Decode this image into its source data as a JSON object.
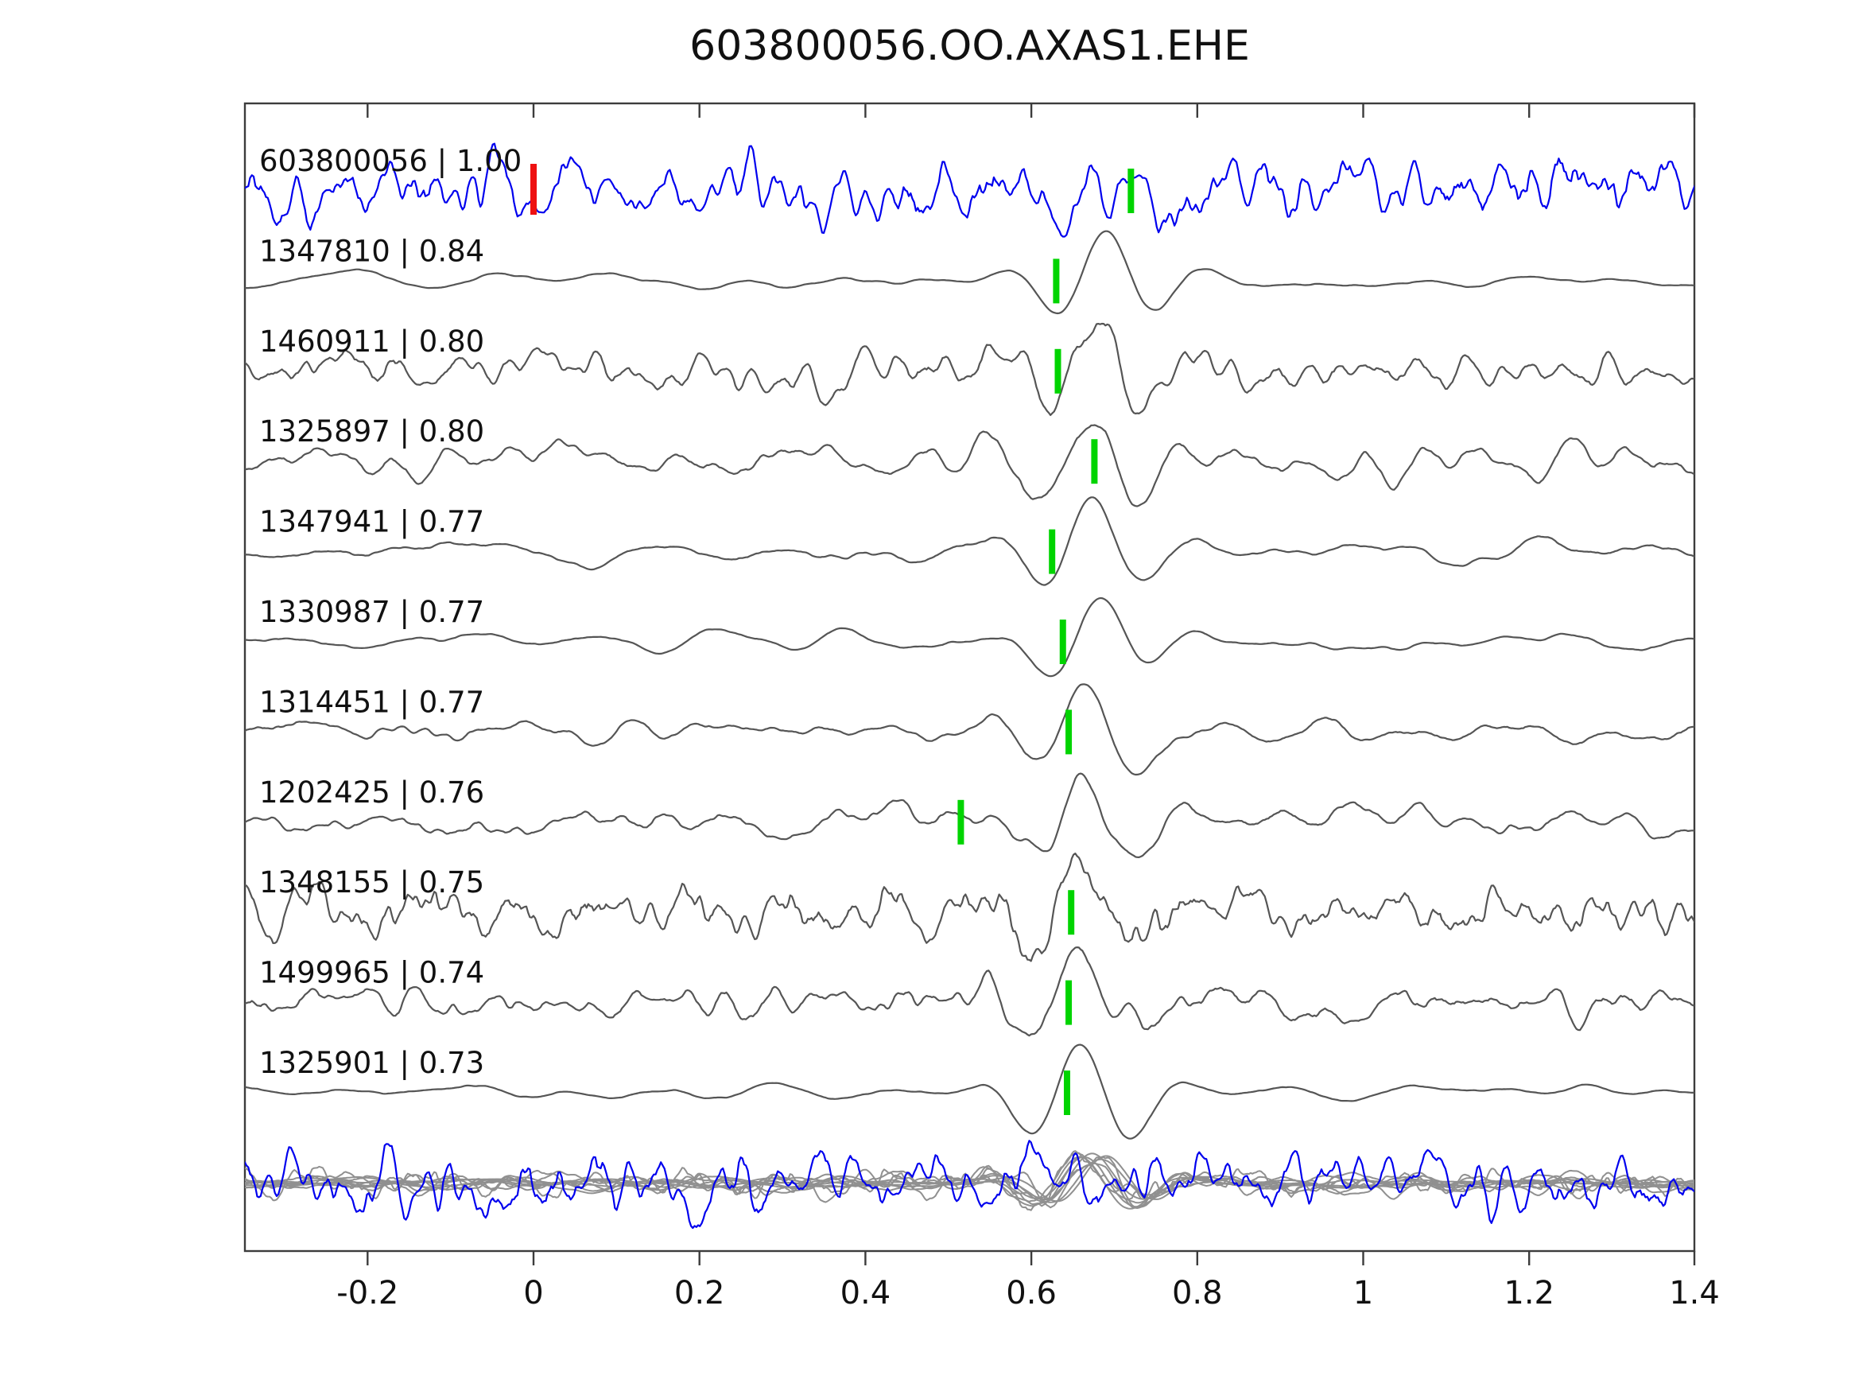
{
  "title": "603800056.OO.AXAS1.EHE",
  "chart_data": {
    "type": "line",
    "title": "603800056.OO.AXAS1.EHE",
    "description": "Template-matching waveform comparison: template event trace (blue) on top, ten matched event traces (gray) below with cross-correlation coefficients, green phase-pick markers on each trace, red origin marker at t=0 on the template, and an overlay stack of all traces at the bottom.",
    "xlabel": "",
    "ylabel": "",
    "xlim": [
      -0.348,
      1.4
    ],
    "x_ticks": [
      -0.2,
      0,
      0.2,
      0.4,
      0.6,
      0.8,
      1,
      1.2,
      1.4
    ],
    "x_tick_labels": [
      "-0.2",
      "0",
      "0.2",
      "0.4",
      "0.6",
      "0.8",
      "1",
      "1.2",
      "1.4"
    ],
    "grid": false,
    "legend": "none",
    "colors": {
      "template_trace": "#0000ee",
      "match_trace": "#555555",
      "overlay_trace": "#909090",
      "pick_marker": "#00d400",
      "origin_marker": "#ee1111",
      "axis": "#3c3c3c",
      "text": "#111111"
    },
    "traces": [
      {
        "id": "603800056",
        "label": "603800056 | 1.00",
        "correlation": 1.0,
        "role": "template",
        "color": "#0000ee",
        "pick_time": 0.72,
        "origin_marker_time": 0.0,
        "style": {
          "seed": 101,
          "noise_amp": 40,
          "smooth": 3,
          "pulse_amp": 16,
          "pulse_time": 0.7
        }
      },
      {
        "id": "1347810",
        "label": "1347810 | 0.84",
        "correlation": 0.84,
        "role": "match",
        "color": "#555555",
        "pick_time": 0.63,
        "style": {
          "seed": 202,
          "noise_amp": 10,
          "smooth": 14,
          "pulse_amp": 62,
          "pulse_time": 0.685
        }
      },
      {
        "id": "1460911",
        "label": "1460911 | 0.80",
        "correlation": 0.8,
        "role": "match",
        "color": "#555555",
        "pick_time": 0.632,
        "style": {
          "seed": 303,
          "noise_amp": 26,
          "smooth": 4,
          "pulse_amp": 62,
          "pulse_time": 0.675
        }
      },
      {
        "id": "1325897",
        "label": "1325897 | 0.80",
        "correlation": 0.8,
        "role": "match",
        "color": "#555555",
        "pick_time": 0.676,
        "style": {
          "seed": 404,
          "noise_amp": 24,
          "smooth": 7,
          "pulse_amp": 58,
          "pulse_time": 0.663
        }
      },
      {
        "id": "1347941",
        "label": "1347941 | 0.77",
        "correlation": 0.77,
        "role": "match",
        "color": "#555555",
        "pick_time": 0.625,
        "style": {
          "seed": 505,
          "noise_amp": 14,
          "smooth": 11,
          "pulse_amp": 64,
          "pulse_time": 0.668
        }
      },
      {
        "id": "1330987",
        "label": "1330987 | 0.77",
        "correlation": 0.77,
        "role": "match",
        "color": "#555555",
        "pick_time": 0.638,
        "style": {
          "seed": 606,
          "noise_amp": 13,
          "smooth": 13,
          "pulse_amp": 60,
          "pulse_time": 0.675
        }
      },
      {
        "id": "1314451",
        "label": "1314451 | 0.77",
        "correlation": 0.77,
        "role": "match",
        "color": "#555555",
        "pick_time": 0.645,
        "style": {
          "seed": 707,
          "noise_amp": 16,
          "smooth": 9,
          "pulse_amp": 64,
          "pulse_time": 0.663
        }
      },
      {
        "id": "1202425",
        "label": "1202425 | 0.76",
        "correlation": 0.76,
        "role": "match",
        "color": "#555555",
        "pick_time": 0.515,
        "style": {
          "seed": 808,
          "noise_amp": 20,
          "smooth": 7,
          "pulse_amp": 55,
          "pulse_time": 0.66
        }
      },
      {
        "id": "1348155",
        "label": "1348155 | 0.75",
        "correlation": 0.75,
        "role": "match",
        "color": "#555555",
        "pick_time": 0.648,
        "style": {
          "seed": 909,
          "noise_amp": 30,
          "smooth": 3,
          "pulse_amp": 58,
          "pulse_time": 0.655
        }
      },
      {
        "id": "1499965",
        "label": "1499965 | 0.74",
        "correlation": 0.74,
        "role": "match",
        "color": "#555555",
        "pick_time": 0.645,
        "style": {
          "seed": 1010,
          "noise_amp": 22,
          "smooth": 5,
          "pulse_amp": 55,
          "pulse_time": 0.655
        }
      },
      {
        "id": "1325901",
        "label": "1325901 | 0.73",
        "correlation": 0.73,
        "role": "match",
        "color": "#555555",
        "pick_time": 0.643,
        "style": {
          "seed": 1111,
          "noise_amp": 11,
          "smooth": 14,
          "pulse_amp": 68,
          "pulse_time": 0.655
        }
      }
    ],
    "overlay": {
      "description": "All matched traces superimposed (gray) together with the template trace (blue)",
      "gray_color": "#909090",
      "template_color": "#0000ee",
      "amplitude_scale": 0.55,
      "template_style": {
        "seed": 1212,
        "noise_amp": 40,
        "smooth": 3
      }
    }
  }
}
